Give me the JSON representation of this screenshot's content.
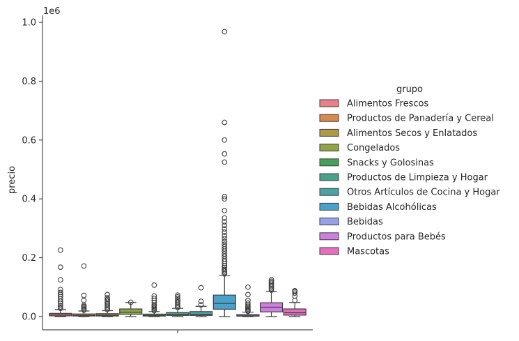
{
  "chart_data": {
    "type": "box",
    "ylabel": "precio",
    "offset_text": "1e6",
    "yticks": [
      "0.0",
      "0.2",
      "0.4",
      "0.6",
      "0.8",
      "1.0"
    ],
    "ylim": [
      0,
      1000000
    ],
    "legend": {
      "title": "grupo",
      "placement": "right"
    },
    "series": [
      {
        "name": "Alimentos Frescos",
        "color": "#e8808a",
        "q1": 2500,
        "median": 6000,
        "q3": 11000,
        "whisker_low": 0,
        "whisker_high": 24000,
        "outliers": [
          28000,
          33000,
          38000,
          45000,
          52000,
          60000,
          68000,
          75000,
          82000,
          92000,
          125000,
          168000,
          226000
        ]
      },
      {
        "name": "Productos de Panadería y Cereal",
        "color": "#d9884f",
        "q1": 2000,
        "median": 4500,
        "q3": 9000,
        "whisker_low": 0,
        "whisker_high": 19000,
        "outliers": [
          22000,
          26000,
          30000,
          34000,
          38000,
          55000,
          72000,
          172000
        ]
      },
      {
        "name": "Alimentos Secos y Enlatados",
        "color": "#b09a48",
        "q1": 2000,
        "median": 5000,
        "q3": 10000,
        "whisker_low": 0,
        "whisker_high": 20000,
        "outliers": [
          24000,
          28000,
          33000,
          38000,
          43000,
          48000,
          53000,
          58000,
          64000,
          75000
        ]
      },
      {
        "name": "Congelados",
        "color": "#8fa348",
        "q1": 8000,
        "median": 15000,
        "q3": 26000,
        "whisker_low": 0,
        "whisker_high": 48000,
        "outliers": [
          48500
        ]
      },
      {
        "name": "Snacks y Golosinas",
        "color": "#47a05a",
        "q1": 1800,
        "median": 4000,
        "q3": 8500,
        "whisker_low": 0,
        "whisker_high": 17000,
        "outliers": [
          20000,
          24000,
          28000,
          32000,
          36000,
          40000,
          48000,
          55000,
          62000,
          70000,
          107000
        ]
      },
      {
        "name": "Productos de Limpieza y Hogar",
        "color": "#48a28a",
        "q1": 4000,
        "median": 8000,
        "q3": 14000,
        "whisker_low": 0,
        "whisker_high": 28000,
        "outliers": [
          31000,
          35000,
          40000,
          45000,
          50000,
          55000,
          61000,
          67000,
          73000
        ]
      },
      {
        "name": "Otros Artículos de Cocina y Hogar",
        "color": "#49a3a5",
        "q1": 4000,
        "median": 8000,
        "q3": 17000,
        "whisker_low": 0,
        "whisker_high": 35000,
        "outliers": [
          40000,
          52000,
          98000
        ]
      },
      {
        "name": "Bebidas Alcohólicas",
        "color": "#4aa2cc",
        "q1": 25000,
        "median": 45000,
        "q3": 73000,
        "whisker_low": 0,
        "whisker_high": 140000,
        "outliers": [
          145000,
          150000,
          155000,
          160000,
          166000,
          172000,
          180000,
          188000,
          196000,
          205000,
          213000,
          222000,
          230000,
          238000,
          246000,
          255000,
          265000,
          275000,
          287000,
          298000,
          310000,
          322000,
          335000,
          360000,
          400000,
          408000,
          525000,
          553000,
          600000,
          660000,
          968000
        ]
      },
      {
        "name": "Bebidas",
        "color": "#9aa0e8",
        "q1": 1500,
        "median": 3000,
        "q3": 7000,
        "whisker_low": 0,
        "whisker_high": 15000,
        "outliers": [
          18000,
          22000,
          26000,
          30000,
          35000,
          40000,
          46000,
          55000,
          75000,
          100000
        ]
      },
      {
        "name": "Productos para Bebés",
        "color": "#d07fe0",
        "q1": 16000,
        "median": 32000,
        "q3": 47000,
        "whisker_low": 0,
        "whisker_high": 85000,
        "outliers": [
          90000,
          95000,
          100000,
          105000,
          110000,
          115000,
          120000,
          125000
        ]
      },
      {
        "name": "Mascotas",
        "color": "#e56ec0",
        "q1": 5000,
        "median": 13000,
        "q3": 26000,
        "whisker_low": 0,
        "whisker_high": 48000,
        "outliers": [
          55000,
          70000,
          80000,
          85000,
          88000
        ]
      }
    ]
  }
}
